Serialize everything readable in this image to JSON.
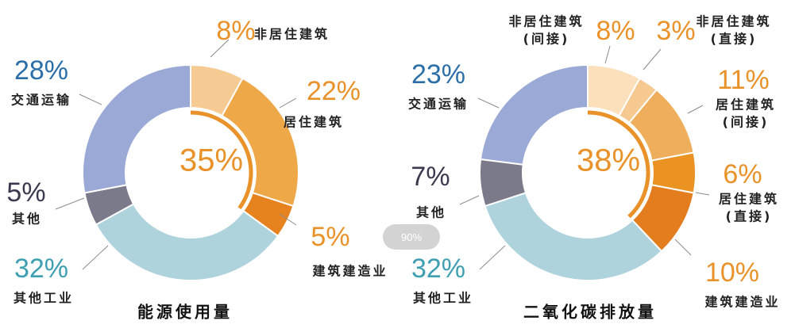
{
  "colors": {
    "orange_text": "#e9922a",
    "blue_text": "#2c6fa8",
    "dark_text": "#3a3a4e",
    "teal_text": "#3f9fb2",
    "label_text": "#222222"
  },
  "zoom_label": "90%",
  "chart_data": [
    {
      "type": "pie",
      "title": "能源使用量",
      "center_label": "35%",
      "slices": [
        {
          "label": "非居住建筑",
          "value": 8,
          "display": "8%",
          "color": "#f5cb93",
          "text_color": "#e9922a"
        },
        {
          "label": "居住建筑",
          "value": 22,
          "display": "22%",
          "color": "#eea848",
          "text_color": "#e9922a"
        },
        {
          "label": "建筑建造业",
          "value": 5,
          "display": "5%",
          "color": "#e7831f",
          "text_color": "#e9922a"
        },
        {
          "label": "其他工业",
          "value": 32,
          "display": "32%",
          "color": "#aed3dd",
          "text_color": "#3f9fb2"
        },
        {
          "label": "其他",
          "value": 5,
          "display": "5%",
          "color": "#7a7a8a",
          "text_color": "#3a3a4e"
        },
        {
          "label": "交通运输",
          "value": 28,
          "display": "28%",
          "color": "#9aa9d5",
          "text_color": "#2c6fa8"
        }
      ]
    },
    {
      "type": "pie",
      "title": "二氧化碳排放量",
      "center_label": "38%",
      "slices": [
        {
          "label": "非居住建筑\n(间接)",
          "value": 8,
          "display": "8%",
          "color": "#fbe0bb",
          "text_color": "#e9922a"
        },
        {
          "label": "非居住建筑\n(直接)",
          "value": 3,
          "display": "3%",
          "color": "#f5c98f",
          "text_color": "#e9922a"
        },
        {
          "label": "居住建筑\n(间接)",
          "value": 11,
          "display": "11%",
          "color": "#efae5c",
          "text_color": "#e9922a"
        },
        {
          "label": "居住建筑\n(直接)",
          "value": 6,
          "display": "6%",
          "color": "#ea9222",
          "text_color": "#e9922a"
        },
        {
          "label": "建筑建造业",
          "value": 10,
          "display": "10%",
          "color": "#e37d1e",
          "text_color": "#e9922a"
        },
        {
          "label": "其他工业",
          "value": 32,
          "display": "32%",
          "color": "#aed3dd",
          "text_color": "#3f9fb2"
        },
        {
          "label": "其他",
          "value": 7,
          "display": "7%",
          "color": "#7a7a8a",
          "text_color": "#3a3a4e"
        },
        {
          "label": "交通运输",
          "value": 23,
          "display": "23%",
          "color": "#9aa9d5",
          "text_color": "#2c6fa8"
        }
      ]
    }
  ]
}
